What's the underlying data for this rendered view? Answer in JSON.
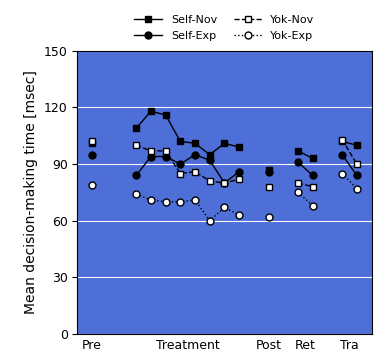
{
  "chart_data": {
    "type": "line",
    "y_label": "Mean decision-making time [msec]",
    "x": [
      1,
      2.5,
      4,
      5,
      6,
      7,
      8,
      9,
      10,
      11,
      12,
      13,
      14,
      15,
      16,
      17,
      18,
      19
    ],
    "xlim": [
      0,
      20
    ],
    "xticks": [
      {
        "value": 1,
        "label": "Pre"
      },
      {
        "value": 7.5,
        "label": "Treatment"
      },
      {
        "value": 13,
        "label": "Post"
      },
      {
        "value": 15.5,
        "label": "Ret"
      },
      {
        "value": 18.5,
        "label": "Tra"
      }
    ],
    "ylim": [
      0,
      150
    ],
    "yticks": [
      0,
      30,
      60,
      90,
      120,
      150
    ],
    "grid": true,
    "legend": "top",
    "series": [
      {
        "name": "Self-Nov",
        "color": "#000000",
        "marker": "square",
        "line_style": "solid",
        "values": [
          101,
          null,
          109,
          118,
          116,
          102,
          101,
          95,
          101,
          99,
          null,
          87,
          null,
          97,
          93,
          null,
          102,
          100
        ]
      },
      {
        "name": "Self-Exp",
        "color": "#000000",
        "marker": "circle",
        "line_style": "solid",
        "values": [
          95,
          null,
          84,
          94,
          94,
          90,
          95,
          92,
          80,
          86,
          null,
          86,
          null,
          91,
          84,
          null,
          95,
          84
        ]
      },
      {
        "name": "Yok-Nov",
        "color": "#ffffff",
        "marker": "square",
        "line_style": "dashed",
        "values": [
          102,
          null,
          100,
          97,
          97,
          85,
          86,
          81,
          80,
          82,
          null,
          78,
          null,
          80,
          78,
          null,
          103,
          90
        ]
      },
      {
        "name": "Yok-Exp",
        "color": "#ffffff",
        "marker": "circle",
        "line_style": "dotted",
        "values": [
          79,
          null,
          74,
          71,
          70,
          70,
          71,
          60,
          67,
          63,
          null,
          62,
          null,
          75,
          68,
          null,
          85,
          77
        ]
      }
    ]
  }
}
